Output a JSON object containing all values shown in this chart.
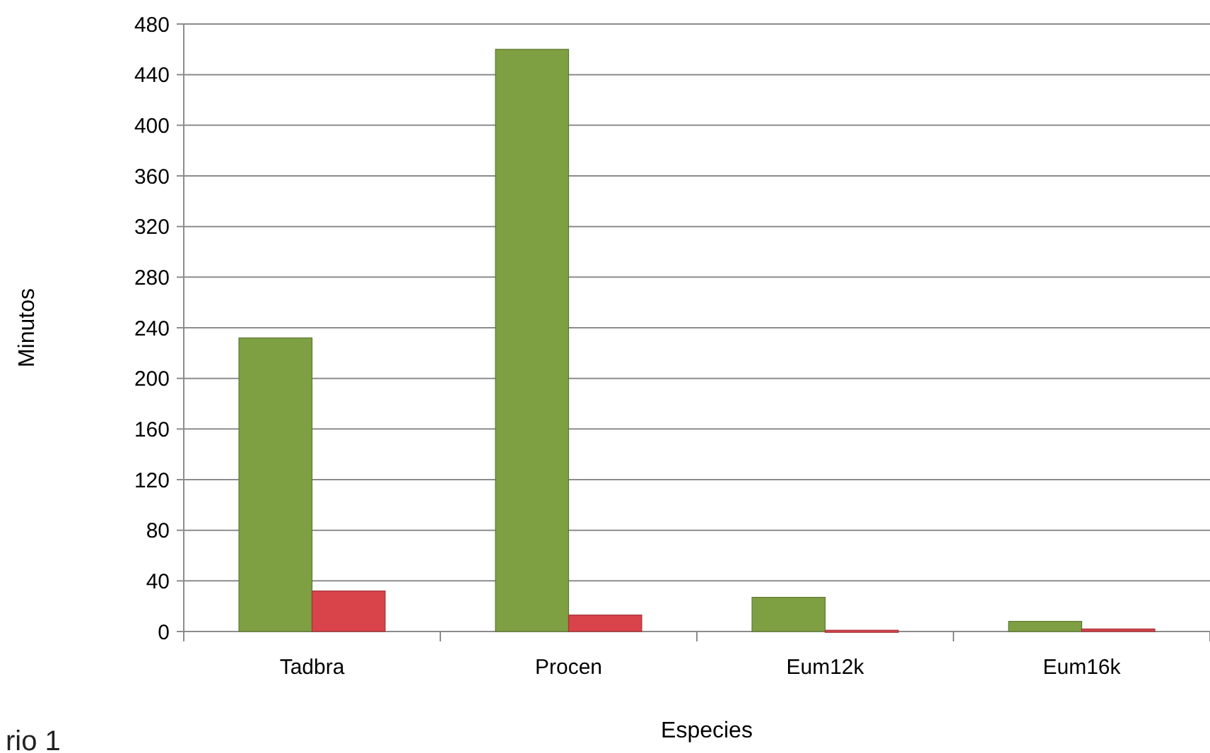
{
  "chart_data": {
    "type": "bar",
    "xlabel": "Especies",
    "ylabel": "Minutos",
    "categories": [
      "Tadbra",
      "Procen",
      "Eum12k",
      "Eum16k"
    ],
    "series": [
      {
        "color": "#7f9f43",
        "values": [
          232,
          460,
          27,
          8
        ]
      },
      {
        "color": "#d9434a",
        "values": [
          32,
          13,
          1,
          2
        ]
      }
    ],
    "ylim": [
      0,
      480
    ],
    "yticks": [
      0,
      40,
      80,
      120,
      160,
      200,
      240,
      280,
      320,
      360,
      400,
      440,
      480
    ],
    "grid": "y",
    "annotations": [
      "rio 1"
    ]
  }
}
